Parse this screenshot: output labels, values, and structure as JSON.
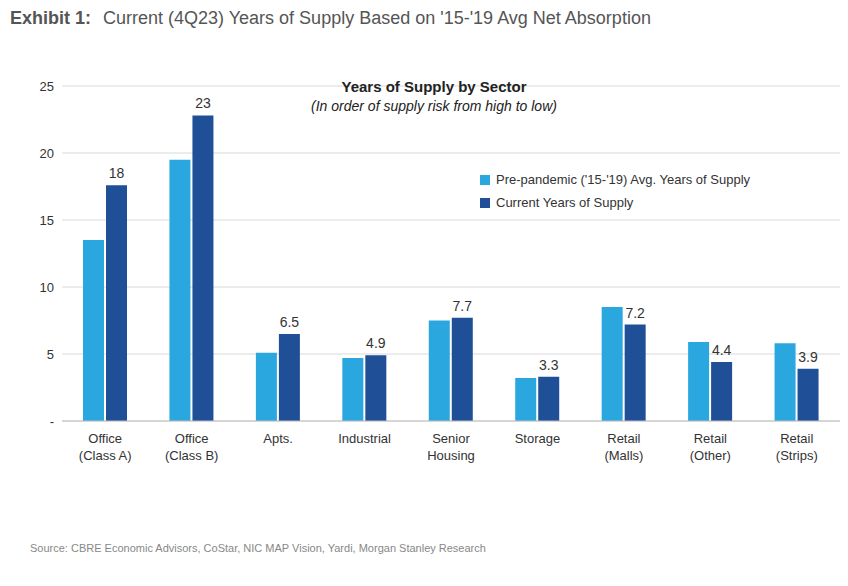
{
  "header": {
    "label": "Exhibit 1:",
    "text": "Current (4Q23) Years of Supply Based on '15-'19 Avg Net Absorption"
  },
  "source": "Source: CBRE Economic Advisors, CoStar, NIC MAP Vision, Yardi, Morgan Stanley Research",
  "chart_data": {
    "type": "bar",
    "title": "Years of Supply by Sector",
    "subtitle": "(In order of supply risk from high to low)",
    "categories": [
      "Office\n(Class A)",
      "Office\n(Class B)",
      "Apts.",
      "Industrial",
      "Senior\nHousing",
      "Storage",
      "Retail\n(Malls)",
      "Retail\n(Other)",
      "Retail\n(Strips)"
    ],
    "series": [
      {
        "name": "Pre-pandemic ('15-'19) Avg. Years of Supply",
        "color": "#2aa7df",
        "values": [
          13.5,
          19.5,
          5.1,
          4.7,
          7.5,
          3.2,
          8.5,
          5.9,
          5.8
        ]
      },
      {
        "name": "Current Years of Supply",
        "color": "#1f4f96",
        "values": [
          17.6,
          22.8,
          6.5,
          4.9,
          7.7,
          3.3,
          7.2,
          4.4,
          3.9
        ],
        "data_labels": true,
        "value_labels": [
          "18",
          "23",
          "6.5",
          "4.9",
          "7.7",
          "3.3",
          "7.2",
          "4.4",
          "3.9"
        ]
      }
    ],
    "ylim": [
      0,
      25
    ],
    "yticks": [
      {
        "value": 0,
        "label": "-"
      },
      5,
      10,
      15,
      20,
      25
    ],
    "grid": true,
    "legend": "upper right"
  }
}
